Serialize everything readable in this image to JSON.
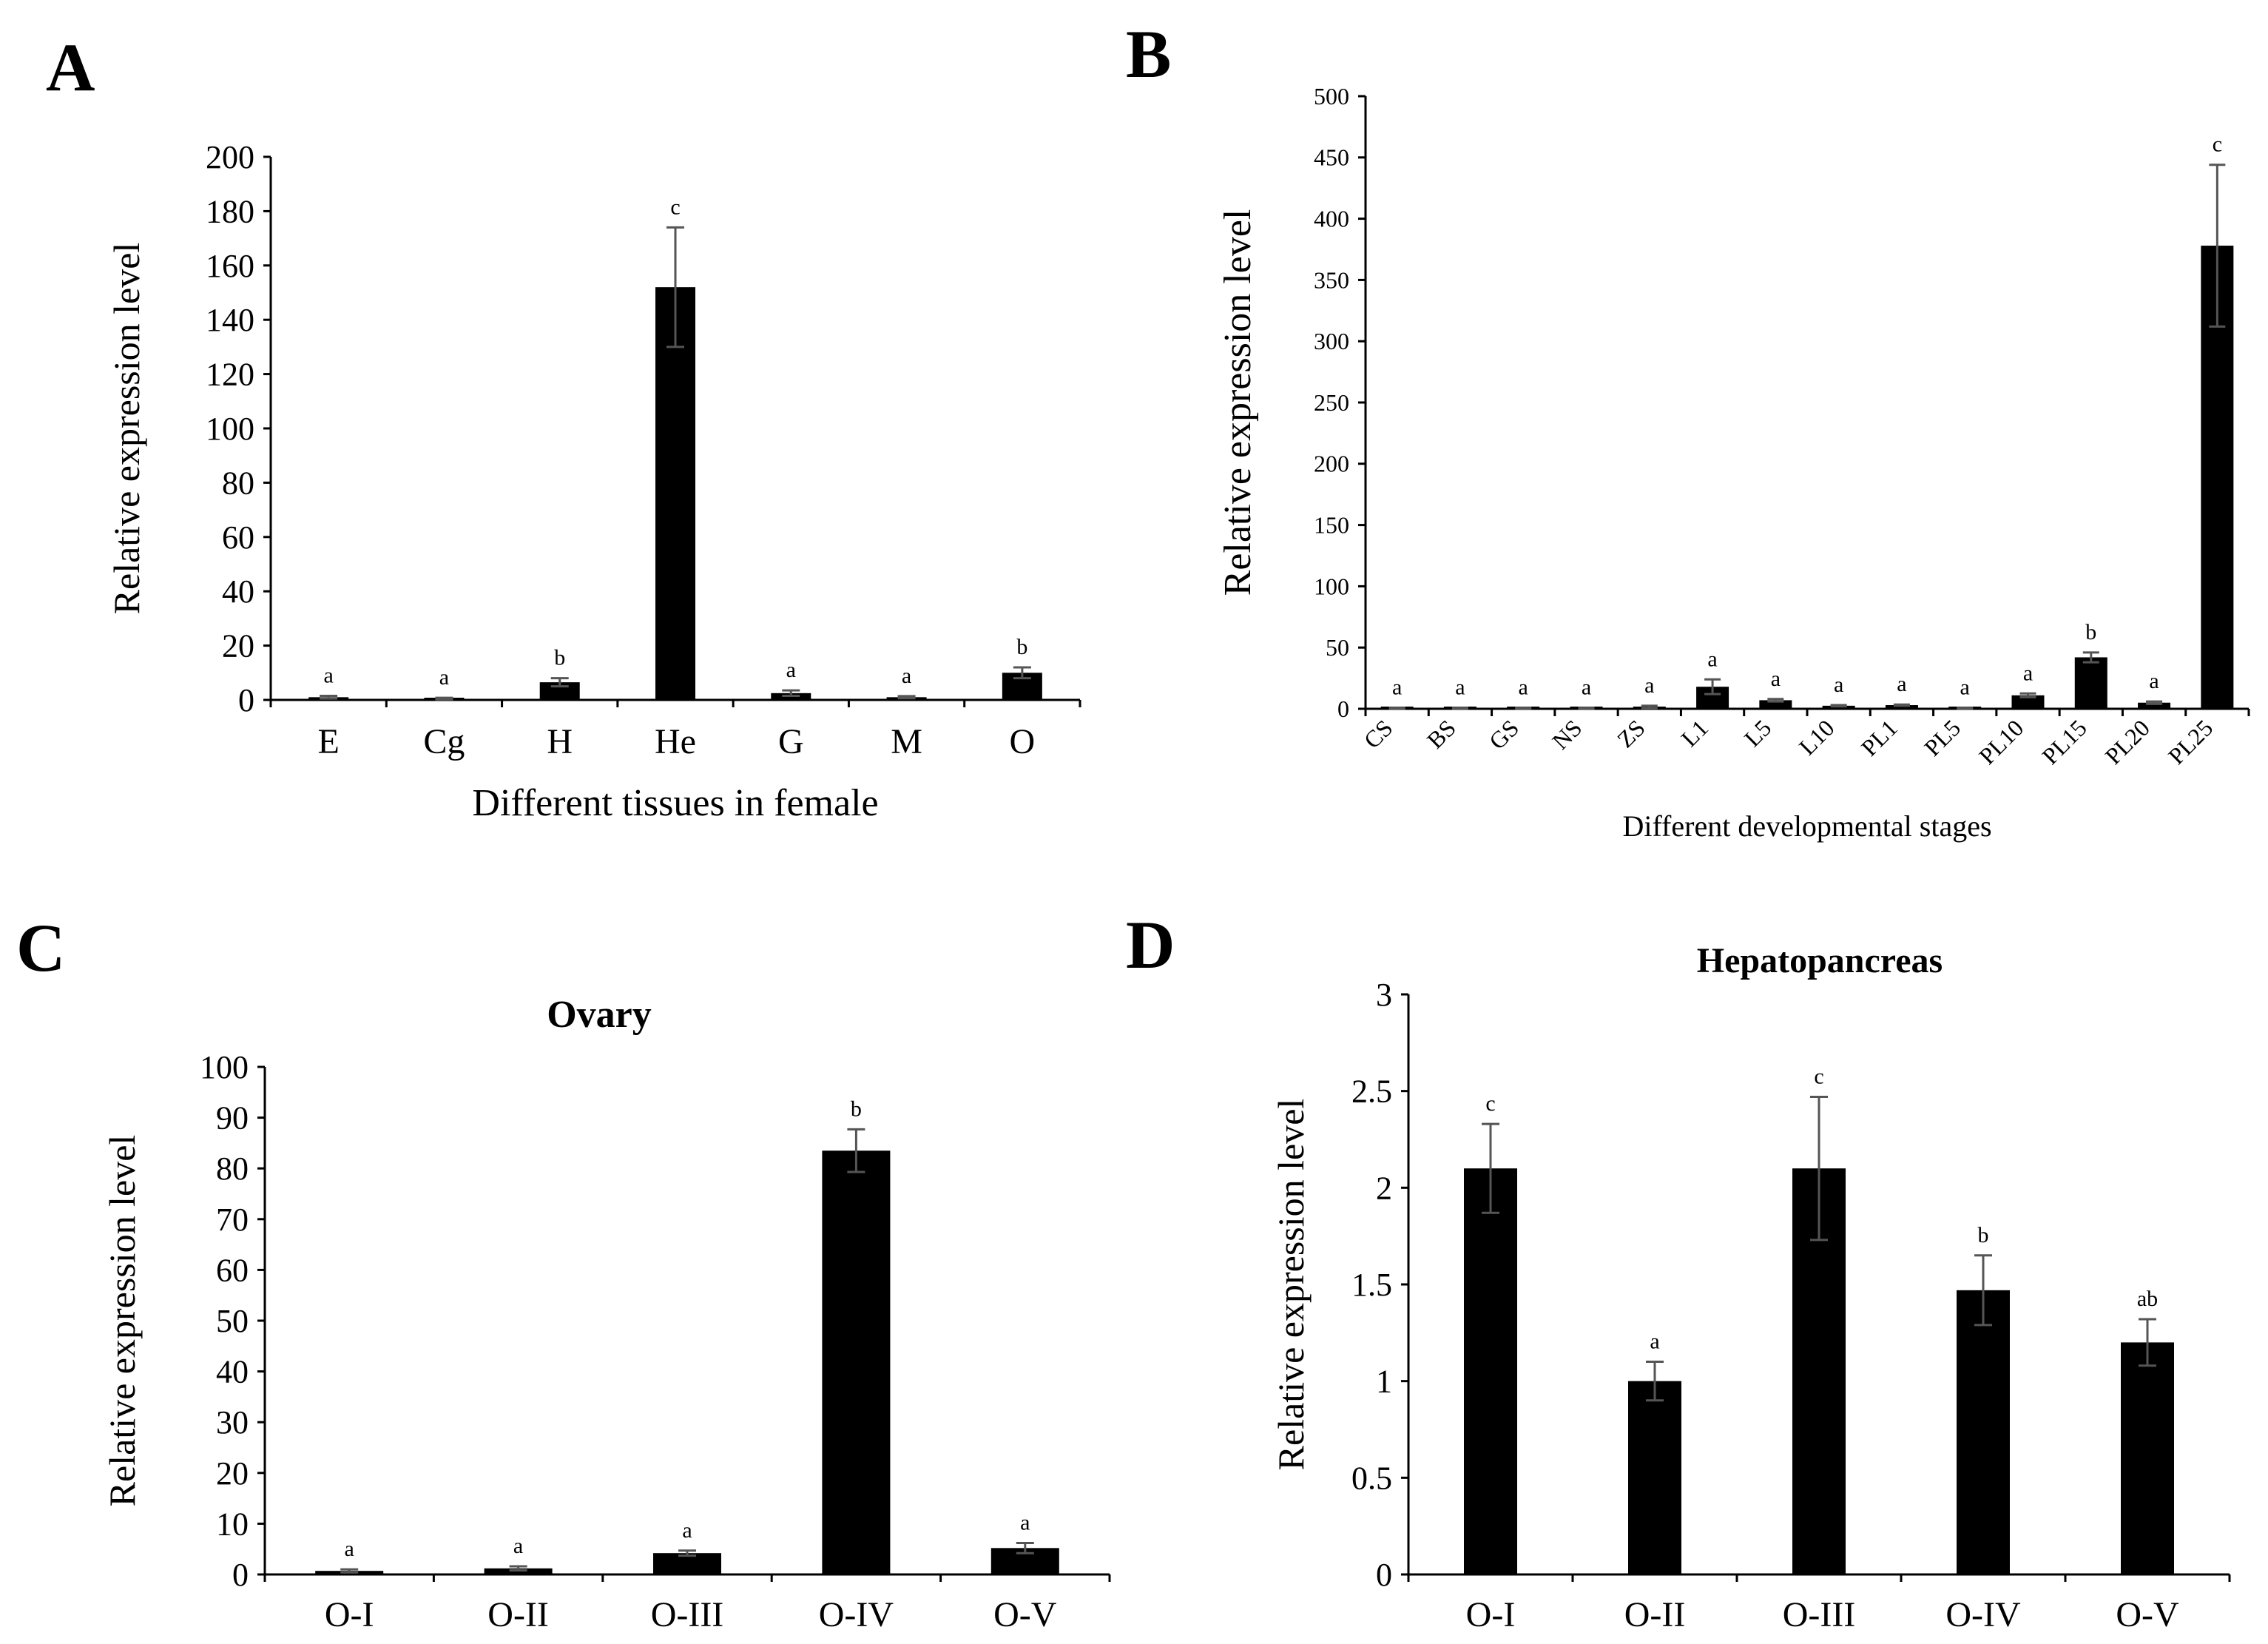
{
  "chart_data": [
    {
      "panel": "A",
      "type": "bar",
      "title": "",
      "xlabel": "Different tissues in female",
      "ylabel": "Relative expression level",
      "ylim": [
        0,
        200
      ],
      "yticks": [
        "0",
        "20",
        "40",
        "60",
        "80",
        "100",
        "120",
        "140",
        "160",
        "180",
        "200"
      ],
      "categories": [
        "E",
        "Cg",
        "H",
        "He",
        "G",
        "M",
        "O"
      ],
      "values": [
        1,
        0.5,
        6.5,
        152,
        2.5,
        1,
        10
      ],
      "errors": [
        0.5,
        0.3,
        1.5,
        22,
        1,
        0.4,
        2
      ],
      "letters": [
        "a",
        "a",
        "b",
        "c",
        "a",
        "a",
        "b"
      ],
      "bar_color": "#000000",
      "grid": false
    },
    {
      "panel": "B",
      "type": "bar",
      "title": "",
      "xlabel": "Different developmental stages",
      "ylabel": "Relative expression level",
      "ylim": [
        0,
        500
      ],
      "yticks": [
        "0",
        "50",
        "100",
        "150",
        "200",
        "250",
        "300",
        "350",
        "400",
        "450",
        "500"
      ],
      "categories": [
        "CS",
        "BS",
        "GS",
        "NS",
        "ZS",
        "L1",
        "L5",
        "L10",
        "PL1",
        "PL5",
        "PL10",
        "PL15",
        "PL20",
        "PL25"
      ],
      "values": [
        0.5,
        0.5,
        0.5,
        0.5,
        1.5,
        18,
        7,
        2.5,
        3,
        0.5,
        11,
        42,
        5,
        378
      ],
      "errors": [
        0.3,
        0.3,
        0.3,
        0.3,
        1,
        6,
        1,
        0.5,
        0.5,
        0.3,
        1.5,
        4,
        1,
        66
      ],
      "letters": [
        "a",
        "a",
        "a",
        "a",
        "a",
        "a",
        "a",
        "a",
        "a",
        "a",
        "a",
        "b",
        "a",
        "c"
      ],
      "bar_color": "#000000",
      "grid": false
    },
    {
      "panel": "C",
      "type": "bar",
      "title": "Ovary",
      "xlabel": "",
      "ylabel": "Relative expression level",
      "ylim": [
        0,
        100
      ],
      "yticks": [
        "0",
        "10",
        "20",
        "30",
        "40",
        "50",
        "60",
        "70",
        "80",
        "90",
        "100"
      ],
      "categories": [
        "O-I",
        "O-II",
        "O-III",
        "O-IV",
        "O-V"
      ],
      "values": [
        0.7,
        1.2,
        4.2,
        83.5,
        5.2
      ],
      "errors": [
        0.3,
        0.4,
        0.5,
        4.2,
        1
      ],
      "letters": [
        "a",
        "a",
        "a",
        "b",
        "a"
      ],
      "bar_color": "#000000",
      "grid": false
    },
    {
      "panel": "D",
      "type": "bar",
      "title": "Hepatopancreas",
      "xlabel": "",
      "ylabel": "Relative expression level",
      "ylim": [
        0,
        3
      ],
      "yticks": [
        "0",
        "0.5",
        "1",
        "1.5",
        "2",
        "2.5",
        "3"
      ],
      "categories": [
        "O-I",
        "O-II",
        "O-III",
        "O-IV",
        "O-V"
      ],
      "values": [
        2.1,
        1.0,
        2.1,
        1.47,
        1.2
      ],
      "errors": [
        0.23,
        0.1,
        0.37,
        0.18,
        0.12
      ],
      "letters": [
        "c",
        "a",
        "c",
        "b",
        "ab"
      ],
      "bar_color": "#000000",
      "grid": false
    }
  ]
}
